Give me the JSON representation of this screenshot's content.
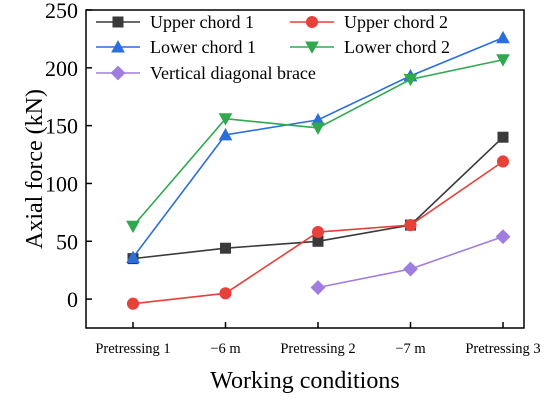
{
  "chart_data": {
    "type": "line",
    "title": "",
    "xlabel": "Working conditions",
    "ylabel": "Axial force (kN)",
    "categories": [
      "Pretressing 1",
      "−6 m",
      "Pretressing 2",
      "−7 m",
      "Pretressing 3"
    ],
    "ylim": [
      -25,
      250
    ],
    "yticks": [
      0,
      50,
      100,
      150,
      200,
      250
    ],
    "grid": false,
    "legend_position": "top-left",
    "series": [
      {
        "name": "Upper chord 1",
        "color": "#3a3a3a",
        "marker": "square",
        "values": [
          35,
          44,
          50,
          64,
          140
        ]
      },
      {
        "name": "Upper chord 2",
        "color": "#e8403a",
        "marker": "circle",
        "values": [
          -4,
          5,
          58,
          64,
          119
        ]
      },
      {
        "name": "Lower chord 1",
        "color": "#2a6fdb",
        "marker": "triangle-up",
        "values": [
          36,
          142,
          155,
          193,
          226
        ]
      },
      {
        "name": "Lower chord 2",
        "color": "#2fa84f",
        "marker": "triangle-down",
        "values": [
          63,
          156,
          148,
          190,
          207
        ]
      },
      {
        "name": "Vertical diagonal brace",
        "color": "#a07de0",
        "marker": "diamond",
        "values": [
          null,
          null,
          10,
          26,
          54
        ]
      }
    ]
  }
}
